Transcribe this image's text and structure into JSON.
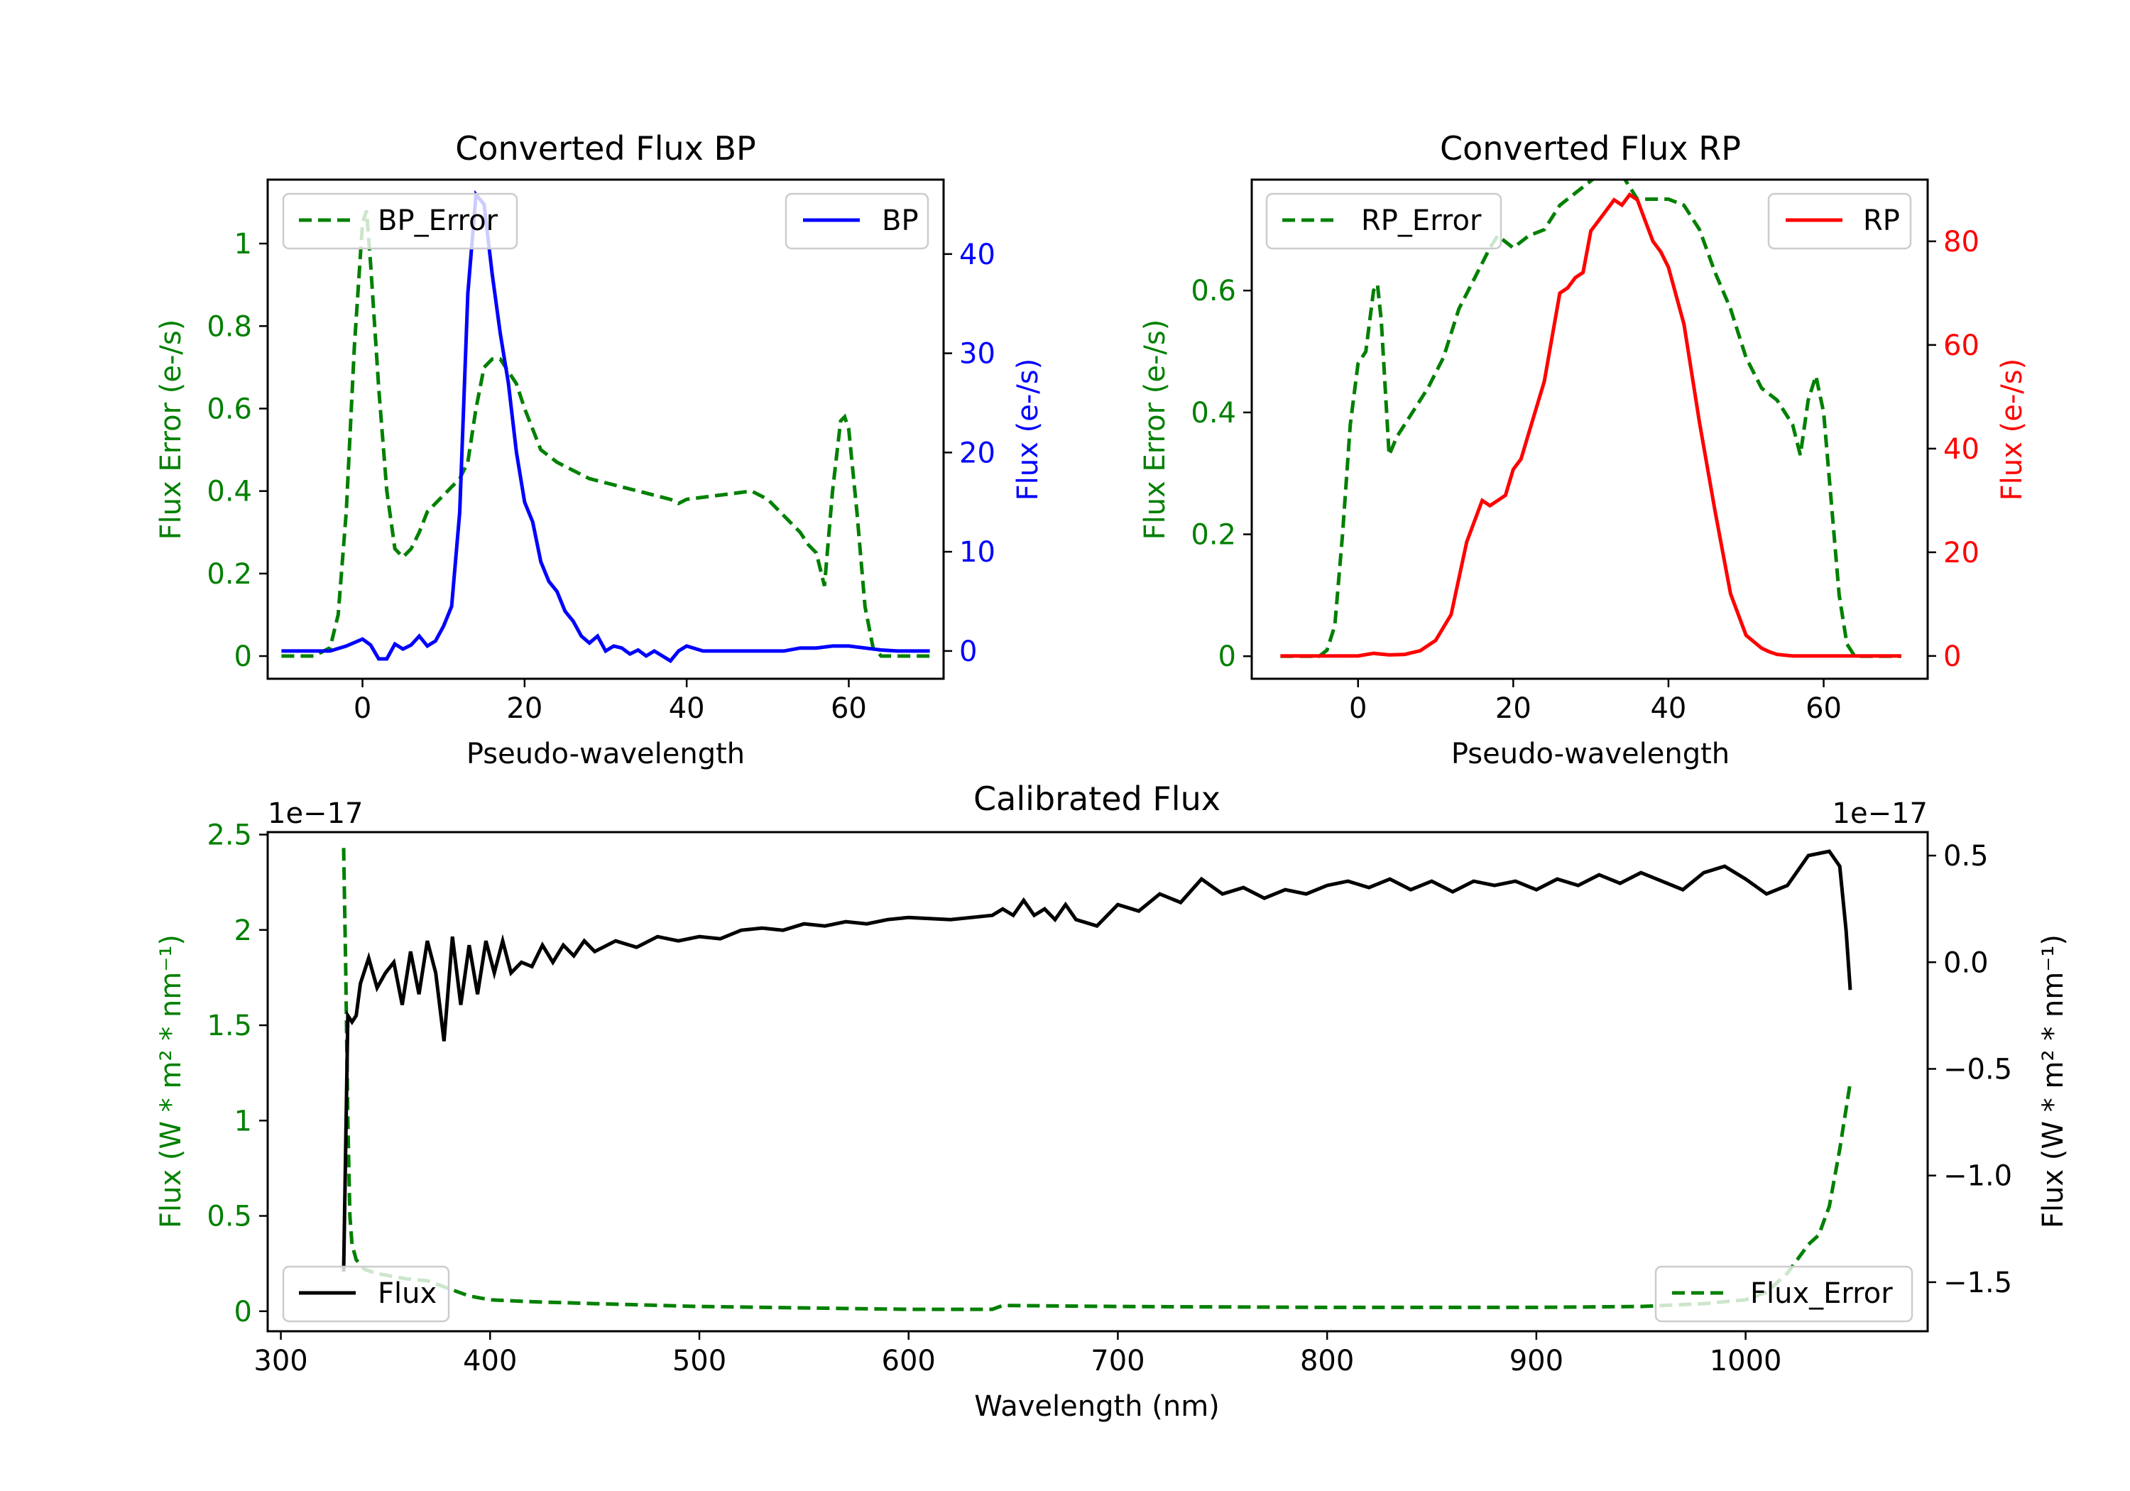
{
  "chart_data": [
    {
      "type": "line",
      "title": "Converted Flux BP",
      "xlabel": "Pseudo-wavelength",
      "ylabel_left": "Flux Error (e-/s)",
      "ylabel_right": "Flux (e-/s)",
      "xlim": [
        -11.7,
        71.7
      ],
      "ylim_left": [
        -0.055,
        1.155
      ],
      "ylim_right": [
        -2.8,
        47.5
      ],
      "xticks": [
        0,
        20,
        40,
        60
      ],
      "yticks_left": [
        0.0,
        0.2,
        0.4,
        0.6,
        0.8,
        1.0
      ],
      "yticks_right": [
        0,
        10,
        20,
        30,
        40
      ],
      "legend_left": {
        "label": "BP_Error",
        "position": "upper-left"
      },
      "legend_right": {
        "label": "BP",
        "position": "upper-right"
      },
      "colors": {
        "error": "#008000",
        "flux": "#0000ff",
        "axis_left": "#008000",
        "axis_right": "#0000ff"
      },
      "series": [
        {
          "name": "BP_Error",
          "axis": "left",
          "style": "dashed",
          "x": [
            -10,
            -6,
            -4,
            -3,
            -2,
            -1,
            0,
            0.5,
            1,
            2,
            3,
            4,
            5,
            6,
            7,
            8,
            9,
            10,
            11,
            12,
            13,
            14,
            15,
            16,
            17,
            18,
            19,
            20,
            21,
            22,
            24,
            26,
            28,
            30,
            32,
            34,
            36,
            38,
            39,
            40,
            42,
            44,
            46,
            48,
            50,
            52,
            54,
            55,
            56,
            57,
            58,
            59,
            59.5,
            60,
            61,
            62,
            63,
            64,
            66,
            70
          ],
          "values": [
            0,
            0,
            0.02,
            0.1,
            0.35,
            0.75,
            1.05,
            1.08,
            0.95,
            0.65,
            0.4,
            0.26,
            0.24,
            0.26,
            0.3,
            0.35,
            0.37,
            0.39,
            0.41,
            0.43,
            0.47,
            0.6,
            0.7,
            0.72,
            0.72,
            0.69,
            0.66,
            0.6,
            0.55,
            0.5,
            0.47,
            0.45,
            0.43,
            0.42,
            0.41,
            0.4,
            0.39,
            0.38,
            0.37,
            0.38,
            0.385,
            0.39,
            0.395,
            0.4,
            0.38,
            0.34,
            0.3,
            0.27,
            0.25,
            0.17,
            0.4,
            0.57,
            0.58,
            0.55,
            0.35,
            0.12,
            0.02,
            0,
            0,
            0
          ]
        },
        {
          "name": "BP",
          "axis": "right",
          "style": "solid",
          "x": [
            -10,
            -4,
            -2,
            0,
            1,
            2,
            3,
            4,
            5,
            6,
            7,
            8,
            9,
            10,
            11,
            12,
            13,
            14,
            15,
            16,
            17,
            18,
            19,
            20,
            21,
            22,
            23,
            24,
            25,
            26,
            27,
            28,
            29,
            30,
            31,
            32,
            33,
            34,
            35,
            36,
            38,
            39,
            40,
            42,
            44,
            46,
            48,
            50,
            52,
            54,
            56,
            58,
            60,
            62,
            64,
            66,
            70
          ],
          "values": [
            0,
            0,
            0.5,
            1.2,
            0.6,
            -0.8,
            -0.8,
            0.7,
            0.2,
            0.6,
            1.5,
            0.5,
            1.0,
            2.5,
            4.5,
            14,
            36,
            46,
            45,
            38,
            32,
            27,
            20,
            15,
            13,
            9,
            7,
            6,
            4,
            3,
            1.5,
            0.8,
            1.5,
            0,
            0.5,
            0.3,
            -0.3,
            0.1,
            -0.5,
            0,
            -1,
            0,
            0.5,
            0,
            0,
            0,
            0,
            0,
            0,
            0.3,
            0.3,
            0.5,
            0.5,
            0.3,
            0.1,
            0,
            0
          ]
        }
      ]
    },
    {
      "type": "line",
      "title": "Converted Flux RP",
      "xlabel": "Pseudo-wavelength",
      "ylabel_left": "Flux Error (e-/s)",
      "ylabel_right": "Flux (e-/s)",
      "xlim": [
        -13.7,
        73.4
      ],
      "ylim_left": [
        -0.037,
        0.782
      ],
      "ylim_right": [
        -4.4,
        91.9
      ],
      "xticks": [
        0,
        20,
        40,
        60
      ],
      "yticks_left": [
        0.0,
        0.2,
        0.4,
        0.6
      ],
      "yticks_right": [
        0,
        20,
        40,
        60,
        80
      ],
      "legend_left": {
        "label": "RP_Error",
        "position": "upper-left"
      },
      "legend_right": {
        "label": "RP",
        "position": "upper-right"
      },
      "colors": {
        "error": "#008000",
        "flux": "#ff0000",
        "axis_left": "#008000",
        "axis_right": "#ff0000"
      },
      "series": [
        {
          "name": "RP_Error",
          "axis": "left",
          "style": "dashed",
          "x": [
            -10,
            -5,
            -4,
            -3,
            -2,
            -1,
            0,
            1,
            2,
            2.5,
            3,
            4,
            5,
            7,
            9,
            11,
            13,
            15,
            17,
            18,
            20,
            22,
            24,
            26,
            28,
            30,
            32,
            34,
            36,
            38,
            40,
            42,
            44,
            46,
            48,
            50,
            52,
            54,
            55,
            56,
            57,
            58,
            59,
            60,
            61,
            62,
            63,
            64,
            66,
            70
          ],
          "values": [
            0,
            0,
            0.01,
            0.05,
            0.2,
            0.38,
            0.48,
            0.5,
            0.6,
            0.61,
            0.55,
            0.33,
            0.36,
            0.4,
            0.44,
            0.49,
            0.57,
            0.62,
            0.67,
            0.69,
            0.67,
            0.69,
            0.7,
            0.74,
            0.76,
            0.78,
            0.8,
            0.79,
            0.75,
            0.75,
            0.75,
            0.74,
            0.7,
            0.63,
            0.57,
            0.49,
            0.44,
            0.42,
            0.4,
            0.38,
            0.33,
            0.42,
            0.46,
            0.4,
            0.25,
            0.1,
            0.02,
            0,
            0,
            0
          ]
        },
        {
          "name": "RP",
          "axis": "right",
          "style": "solid",
          "x": [
            -10,
            0,
            2,
            4,
            6,
            8,
            10,
            12,
            13,
            14,
            15,
            16,
            17,
            18,
            19,
            20,
            21,
            22,
            24,
            26,
            27,
            28,
            29,
            30,
            31,
            32,
            33,
            34,
            35,
            36,
            37,
            38,
            39,
            40,
            42,
            44,
            46,
            48,
            50,
            52,
            53,
            54,
            56,
            58,
            60,
            62,
            70
          ],
          "values": [
            0,
            0,
            0.5,
            0.2,
            0.3,
            1,
            3,
            8,
            15,
            22,
            26,
            30,
            29,
            30,
            31,
            36,
            38,
            43,
            53,
            70,
            71,
            73,
            74,
            82,
            84,
            86,
            88,
            87,
            89,
            88,
            84,
            80,
            78,
            75,
            64,
            45,
            28,
            12,
            4,
            1.5,
            0.8,
            0.3,
            0,
            0,
            0,
            0,
            0
          ]
        }
      ]
    },
    {
      "type": "line",
      "title": "Calibrated Flux",
      "xlabel": "Wavelength (nm)",
      "ylabel_left": "Flux (W * m² * nm⁻¹)",
      "ylabel_right": "Flux (W * m² * nm⁻¹)",
      "offset_left": "1e−17",
      "offset_right": "1e−17",
      "xlim": [
        293.7,
        1087.0
      ],
      "ylim_left": [
        -0.105,
        2.513
      ],
      "ylim_right": [
        -1.73,
        0.61
      ],
      "xticks": [
        300,
        400,
        500,
        600,
        700,
        800,
        900,
        1000
      ],
      "yticks_left": [
        0.0,
        0.5,
        1.0,
        1.5,
        2.0,
        2.5
      ],
      "yticks_right": [
        0.5,
        0.0,
        -0.5,
        -1.0,
        -1.5
      ],
      "ytick_labels_right": [
        "0.5",
        "0.0",
        "−0.5",
        "−1.0",
        "−1.5"
      ],
      "legend_left": {
        "label": "Flux",
        "position": "lower-left"
      },
      "legend_right": {
        "label": "Flux_Error",
        "position": "lower-right"
      },
      "colors": {
        "error": "#008000",
        "flux": "#000000",
        "axis_left": "#008000",
        "axis_right": "#000000"
      },
      "series": [
        {
          "name": "Flux_Error",
          "axis": "left",
          "style": "dashed",
          "x": [
            330,
            331,
            332,
            333,
            334,
            336,
            340,
            345,
            350,
            360,
            370,
            380,
            390,
            400,
            420,
            450,
            500,
            600,
            640,
            645,
            700,
            800,
            900,
            950,
            980,
            1000,
            1010,
            1020,
            1030,
            1035,
            1040,
            1045,
            1050
          ],
          "values": [
            2.43,
            1.8,
            1.0,
            0.5,
            0.35,
            0.27,
            0.22,
            0.2,
            0.19,
            0.17,
            0.16,
            0.12,
            0.08,
            0.06,
            0.05,
            0.04,
            0.025,
            0.01,
            0.01,
            0.03,
            0.025,
            0.02,
            0.02,
            0.025,
            0.04,
            0.06,
            0.1,
            0.2,
            0.35,
            0.4,
            0.55,
            0.85,
            1.2
          ]
        },
        {
          "name": "Flux",
          "axis": "right",
          "style": "solid",
          "x": [
            330,
            332,
            334,
            336,
            338,
            342,
            346,
            350,
            354,
            358,
            362,
            366,
            370,
            374,
            378,
            382,
            386,
            390,
            394,
            398,
            402,
            406,
            410,
            415,
            420,
            425,
            430,
            435,
            440,
            445,
            450,
            460,
            470,
            480,
            490,
            500,
            510,
            520,
            530,
            540,
            550,
            560,
            570,
            580,
            590,
            600,
            620,
            640,
            645,
            650,
            655,
            660,
            665,
            670,
            675,
            680,
            690,
            700,
            710,
            720,
            730,
            740,
            750,
            760,
            770,
            780,
            790,
            800,
            810,
            820,
            830,
            840,
            850,
            860,
            870,
            880,
            890,
            900,
            910,
            920,
            930,
            940,
            950,
            960,
            970,
            980,
            990,
            1000,
            1010,
            1020,
            1030,
            1040,
            1045,
            1048,
            1050
          ],
          "values": [
            -1.45,
            -0.25,
            -0.28,
            -0.25,
            -0.1,
            0.02,
            -0.12,
            -0.05,
            0.0,
            -0.2,
            0.05,
            -0.15,
            0.1,
            -0.05,
            -0.37,
            0.12,
            -0.2,
            0.08,
            -0.15,
            0.1,
            -0.05,
            0.1,
            -0.05,
            0.0,
            -0.02,
            0.08,
            0.0,
            0.08,
            0.03,
            0.1,
            0.05,
            0.1,
            0.07,
            0.12,
            0.1,
            0.12,
            0.11,
            0.15,
            0.16,
            0.15,
            0.18,
            0.17,
            0.19,
            0.18,
            0.2,
            0.21,
            0.2,
            0.22,
            0.25,
            0.22,
            0.29,
            0.22,
            0.25,
            0.2,
            0.27,
            0.2,
            0.17,
            0.27,
            0.24,
            0.32,
            0.28,
            0.39,
            0.32,
            0.35,
            0.3,
            0.34,
            0.32,
            0.36,
            0.38,
            0.35,
            0.39,
            0.34,
            0.38,
            0.33,
            0.38,
            0.36,
            0.38,
            0.34,
            0.39,
            0.36,
            0.41,
            0.37,
            0.42,
            0.38,
            0.34,
            0.42,
            0.45,
            0.39,
            0.32,
            0.36,
            0.5,
            0.52,
            0.45,
            0.15,
            -0.13
          ]
        }
      ]
    }
  ]
}
